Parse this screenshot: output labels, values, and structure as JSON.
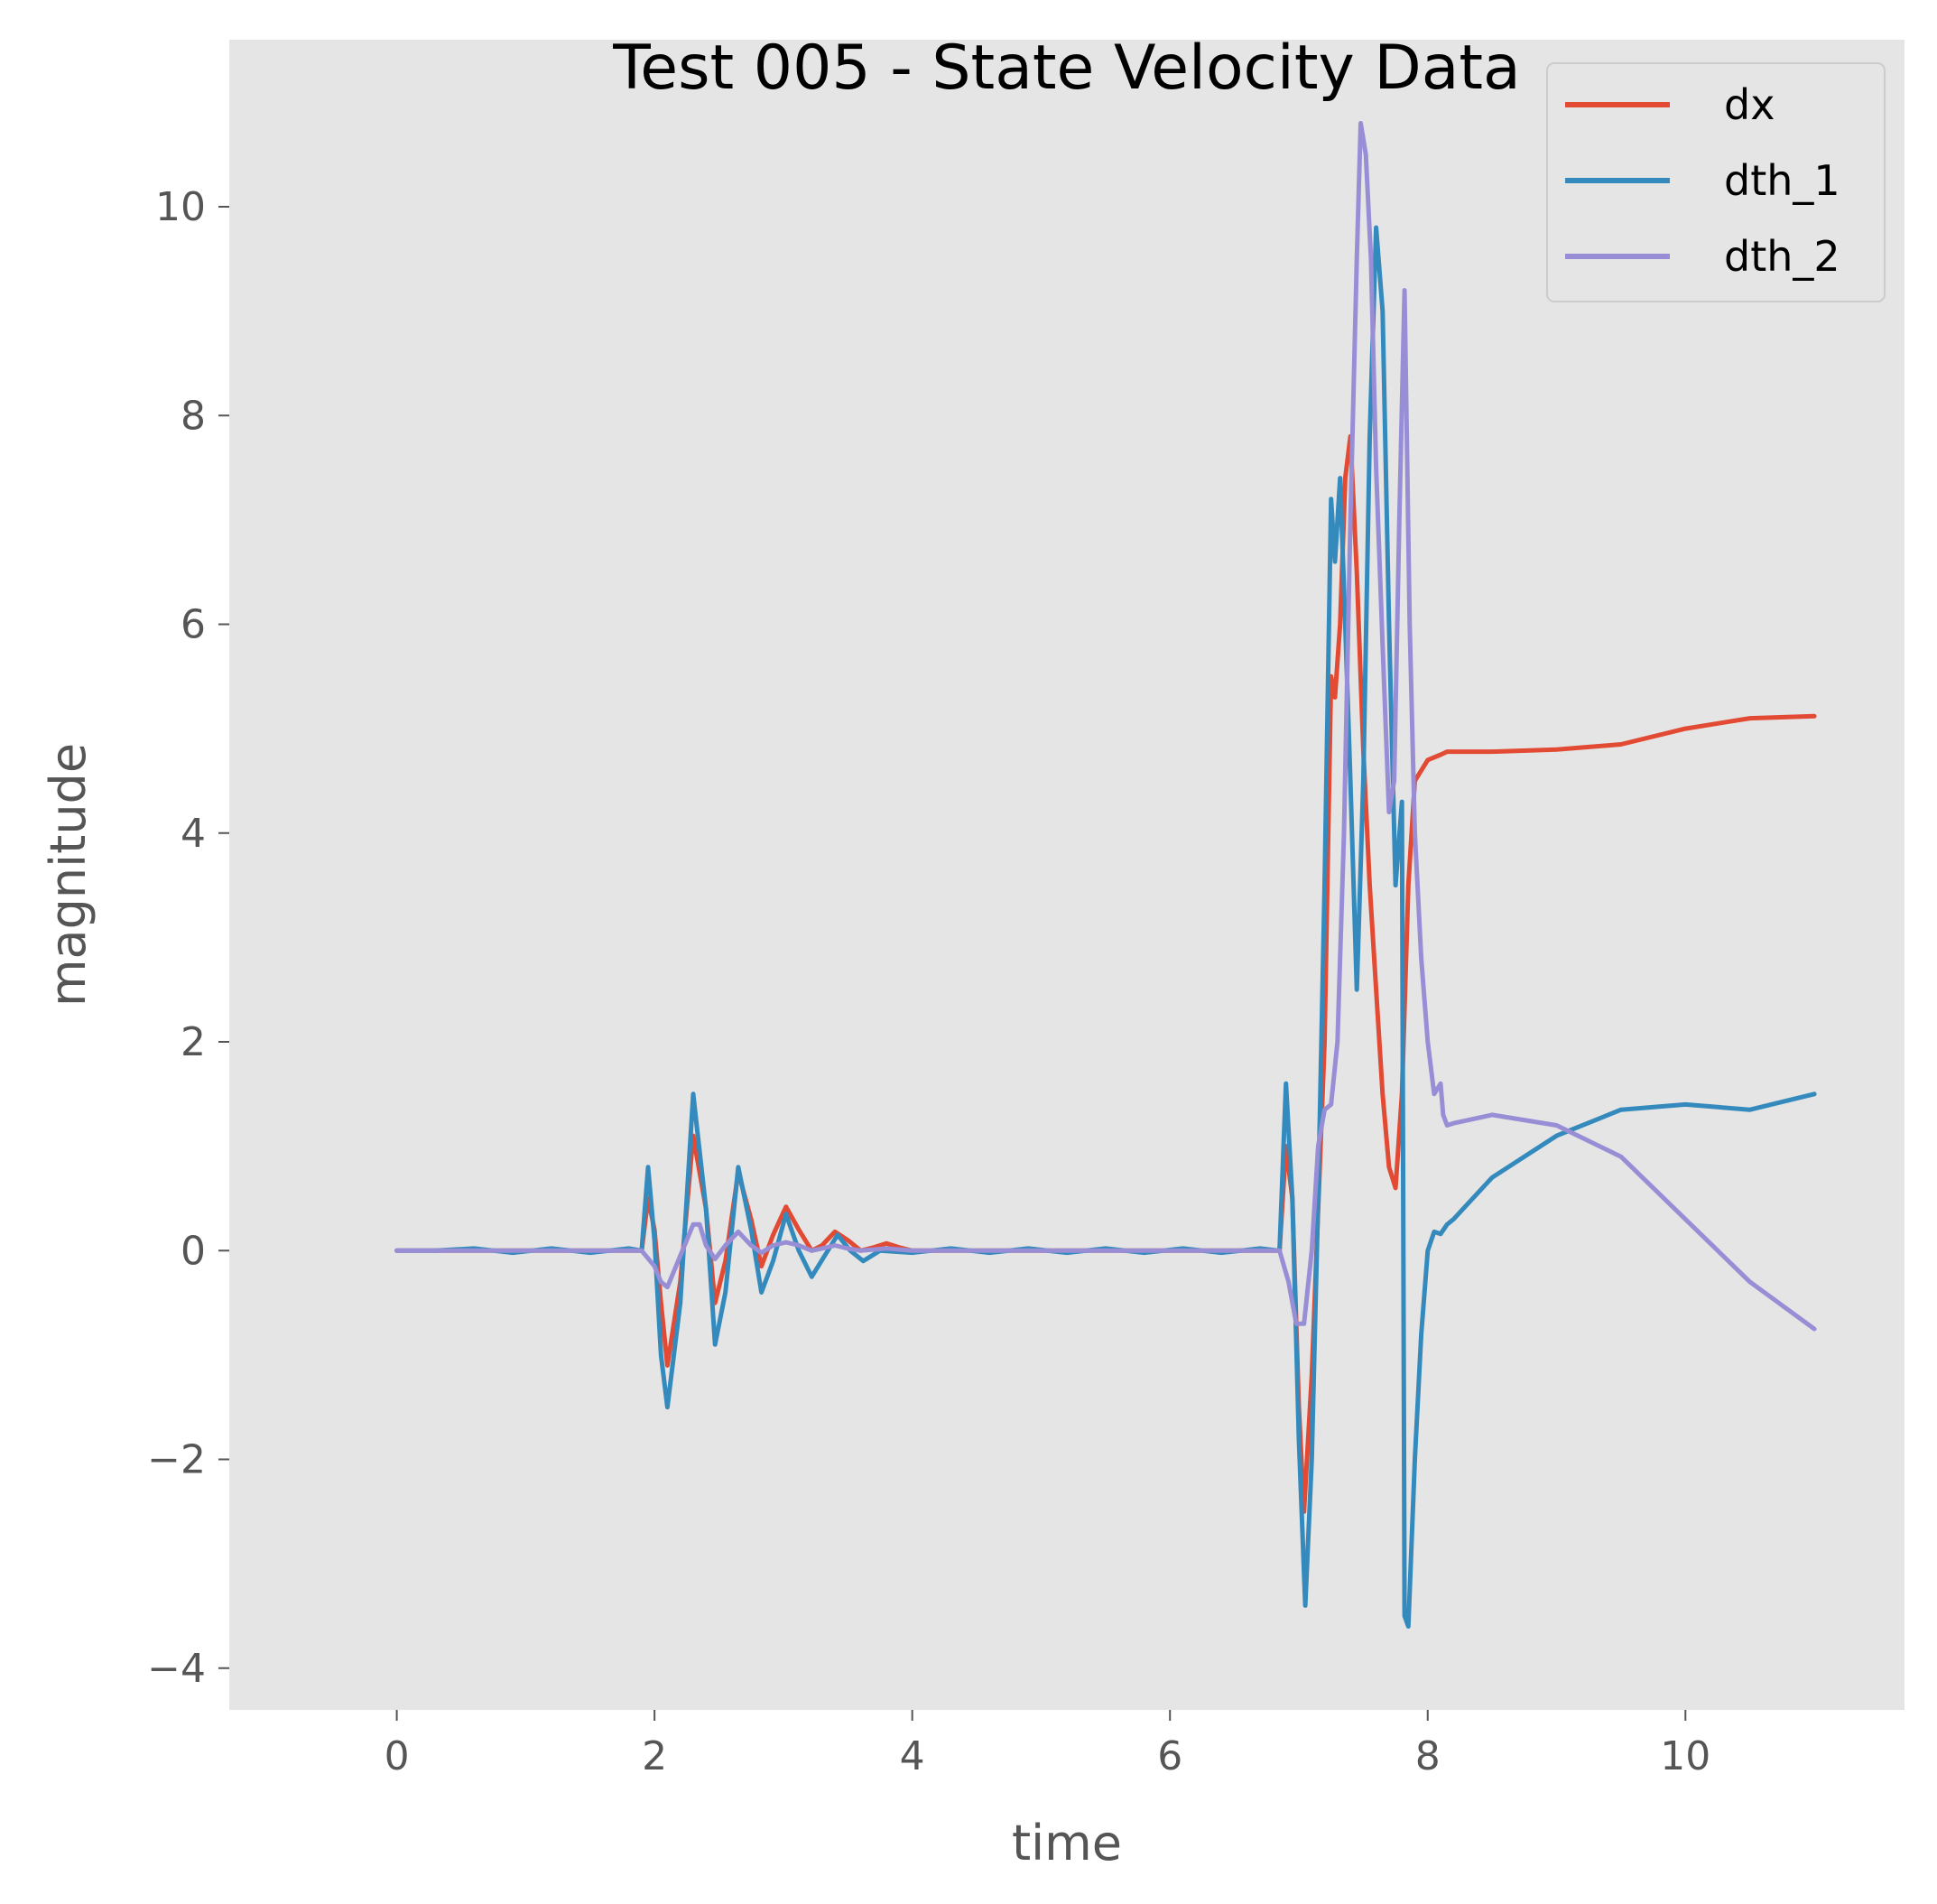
{
  "chart_data": {
    "type": "line",
    "title": "Test 005 - State Velocity Data",
    "xlabel": "time",
    "ylabel": "magnitude",
    "xlim": [
      -1.3,
      11.7
    ],
    "ylim": [
      -4.4,
      11.6
    ],
    "xticks": [
      0,
      2,
      4,
      6,
      8,
      10
    ],
    "xtick_labels": [
      "0",
      "2",
      "4",
      "6",
      "8",
      "10"
    ],
    "yticks": [
      -4,
      -2,
      0,
      2,
      4,
      6,
      8,
      10
    ],
    "ytick_labels": [
      "−4",
      "−2",
      "0",
      "2",
      "4",
      "6",
      "8",
      "10"
    ],
    "grid": false,
    "legend_position": "top-right",
    "series": [
      {
        "name": "dx",
        "color": "#E24A33",
        "x": [
          0,
          0.5,
          1.0,
          1.5,
          1.9,
          1.95,
          2.0,
          2.05,
          2.1,
          2.2,
          2.3,
          2.4,
          2.47,
          2.55,
          2.65,
          2.75,
          2.83,
          2.92,
          3.02,
          3.12,
          3.22,
          3.3,
          3.4,
          3.5,
          3.6,
          3.7,
          3.8,
          3.9,
          4.0,
          4.5,
          5.0,
          5.5,
          6.0,
          6.5,
          6.85,
          6.9,
          6.95,
          7.0,
          7.04,
          7.1,
          7.2,
          7.25,
          7.28,
          7.32,
          7.36,
          7.4,
          7.45,
          7.5,
          7.55,
          7.6,
          7.65,
          7.7,
          7.75,
          7.8,
          7.85,
          7.9,
          8.0,
          8.1,
          8.15,
          8.2,
          8.5,
          9.0,
          9.5,
          10.0,
          10.5,
          11.0
        ],
        "y": [
          0,
          0,
          0,
          0,
          0,
          0.5,
          0.2,
          -0.5,
          -1.1,
          -0.3,
          1.1,
          0.4,
          -0.5,
          -0.1,
          0.75,
          0.3,
          -0.15,
          0.15,
          0.42,
          0.2,
          0.0,
          0.05,
          0.18,
          0.1,
          0.0,
          0.03,
          0.07,
          0.03,
          0,
          0,
          0,
          0,
          0,
          0,
          0,
          1.0,
          0.5,
          -1.5,
          -2.5,
          -1.2,
          2.0,
          5.5,
          5.3,
          6.0,
          7.4,
          7.8,
          6.5,
          4.8,
          3.5,
          2.5,
          1.5,
          0.8,
          0.6,
          1.5,
          3.5,
          4.5,
          4.7,
          4.75,
          4.78,
          4.78,
          4.78,
          4.8,
          4.85,
          5.0,
          5.1,
          5.12
        ]
      },
      {
        "name": "dth_1",
        "color": "#348ABD",
        "x": [
          0,
          0.3,
          0.6,
          0.9,
          1.2,
          1.5,
          1.8,
          1.9,
          1.95,
          2.0,
          2.05,
          2.1,
          2.2,
          2.3,
          2.4,
          2.47,
          2.55,
          2.65,
          2.75,
          2.83,
          2.92,
          3.02,
          3.12,
          3.22,
          3.32,
          3.42,
          3.52,
          3.62,
          3.75,
          4.0,
          4.3,
          4.6,
          4.9,
          5.2,
          5.5,
          5.8,
          6.1,
          6.4,
          6.7,
          6.85,
          6.9,
          6.95,
          7.0,
          7.05,
          7.1,
          7.15,
          7.2,
          7.25,
          7.28,
          7.32,
          7.36,
          7.4,
          7.45,
          7.5,
          7.55,
          7.6,
          7.65,
          7.7,
          7.75,
          7.8,
          7.82,
          7.85,
          7.9,
          7.95,
          8.0,
          8.05,
          8.1,
          8.15,
          8.2,
          8.5,
          9.0,
          9.5,
          10.0,
          10.5,
          11.0
        ],
        "y": [
          0,
          0.0,
          0.02,
          -0.02,
          0.02,
          -0.02,
          0.02,
          0,
          0.8,
          0.1,
          -1.0,
          -1.5,
          -0.5,
          1.5,
          0.4,
          -0.9,
          -0.4,
          0.8,
          0.2,
          -0.4,
          -0.1,
          0.35,
          0.0,
          -0.25,
          -0.05,
          0.15,
          0.0,
          -0.1,
          0.0,
          -0.02,
          0.02,
          -0.02,
          0.02,
          -0.02,
          0.02,
          -0.02,
          0.02,
          -0.02,
          0.02,
          0,
          1.6,
          0.5,
          -1.8,
          -3.4,
          -2.0,
          0.5,
          3.5,
          7.2,
          6.6,
          7.4,
          6.0,
          4.5,
          2.5,
          4.5,
          7.8,
          9.8,
          9.0,
          6.0,
          3.5,
          4.3,
          -3.5,
          -3.6,
          -2.0,
          -0.8,
          0.0,
          0.18,
          0.16,
          0.25,
          0.3,
          0.7,
          1.1,
          1.35,
          1.4,
          1.35,
          1.5
        ]
      },
      {
        "name": "dth_2",
        "color": "#988ED5",
        "x": [
          0,
          0.5,
          1.0,
          1.5,
          1.9,
          2.0,
          2.05,
          2.1,
          2.2,
          2.3,
          2.35,
          2.4,
          2.47,
          2.55,
          2.65,
          2.75,
          2.83,
          2.92,
          3.02,
          3.12,
          3.22,
          3.3,
          3.4,
          3.5,
          3.6,
          3.7,
          3.8,
          4.0,
          4.5,
          5.0,
          5.5,
          6.0,
          6.5,
          6.85,
          6.92,
          6.98,
          7.04,
          7.1,
          7.15,
          7.2,
          7.25,
          7.3,
          7.35,
          7.4,
          7.45,
          7.48,
          7.52,
          7.56,
          7.6,
          7.65,
          7.7,
          7.74,
          7.78,
          7.82,
          7.86,
          7.9,
          7.95,
          8.0,
          8.05,
          8.1,
          8.12,
          8.15,
          8.2,
          8.5,
          9.0,
          9.5,
          10.0,
          10.5,
          11.0
        ],
        "y": [
          0,
          0,
          0,
          0,
          0,
          -0.15,
          -0.3,
          -0.35,
          -0.05,
          0.25,
          0.25,
          0.05,
          -0.08,
          0.05,
          0.18,
          0.05,
          -0.02,
          0.05,
          0.08,
          0.05,
          0.0,
          0.02,
          0.05,
          0.02,
          0.0,
          0.01,
          0.02,
          0,
          0,
          0,
          0,
          0,
          0,
          0,
          -0.3,
          -0.7,
          -0.7,
          0.0,
          1.0,
          1.35,
          1.4,
          2.0,
          4.0,
          7.0,
          9.5,
          10.8,
          10.5,
          9.5,
          7.5,
          5.8,
          4.2,
          4.5,
          7.0,
          9.2,
          6.0,
          4.0,
          2.8,
          2.0,
          1.5,
          1.6,
          1.3,
          1.2,
          1.22,
          1.3,
          1.2,
          0.9,
          0.3,
          -0.3,
          -0.75
        ]
      }
    ]
  }
}
